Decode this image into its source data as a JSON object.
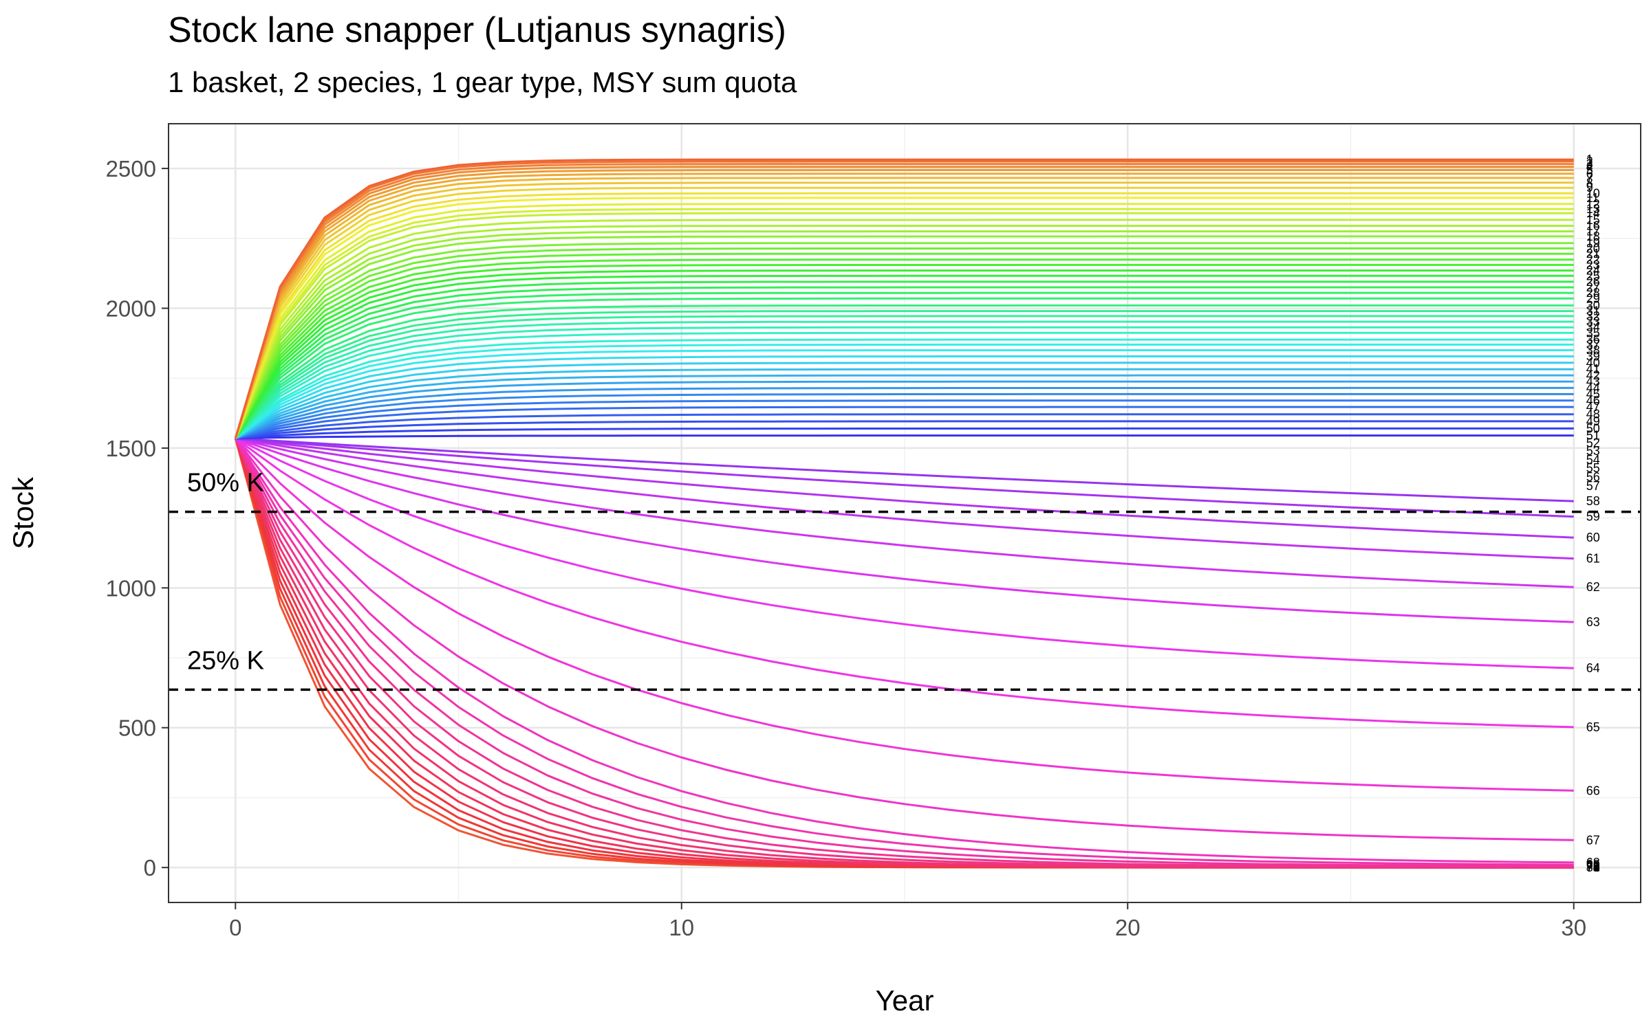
{
  "chart_data": {
    "type": "line",
    "title": "Stock lane snapper (Lutjanus synagris)",
    "subtitle": "1 basket, 2 species, 1 gear type, MSY sum quota",
    "xlabel": "Year",
    "ylabel": "Stock",
    "xlim": [
      -1.5,
      31.5
    ],
    "ylim": [
      -125,
      2660
    ],
    "x_ticks": [
      0,
      10,
      20,
      30
    ],
    "y_ticks": [
      0,
      500,
      1000,
      1500,
      2000,
      2500
    ],
    "grid": true,
    "legend": "none",
    "initial_stock": 1535,
    "carrying_capacity_K": 2545,
    "series_count": 80,
    "series_end_values": [
      2532,
      2525,
      2516,
      2506,
      2494,
      2481,
      2466,
      2449,
      2431,
      2411,
      2395,
      2373,
      2355,
      2340,
      2316,
      2295,
      2275,
      2257,
      2233,
      2214,
      2195,
      2174,
      2155,
      2135,
      2116,
      2095,
      2075,
      2055,
      2035,
      2010,
      1990,
      1972,
      1952,
      1932,
      1912,
      1888,
      1870,
      1850,
      1828,
      1805,
      1782,
      1760,
      1738,
      1715,
      1693,
      1670,
      1647,
      1621,
      1596,
      1570,
      1545,
      1518,
      1490,
      1458,
      1428,
      1397,
      1365,
      1310,
      1255,
      1180,
      1105,
      1003,
      878,
      713,
      502,
      275,
      98,
      18,
      10,
      5,
      2,
      1,
      0,
      0,
      0,
      0,
      0,
      0,
      0,
      0
    ],
    "series_labels": [
      "1",
      "2",
      "3",
      "4",
      "5",
      "6",
      "7",
      "8",
      "9",
      "10",
      "11",
      "12",
      "13",
      "14",
      "15",
      "16",
      "17",
      "18",
      "19",
      "20",
      "21",
      "22",
      "23",
      "24",
      "25",
      "26",
      "27",
      "28",
      "29",
      "30",
      "31",
      "32",
      "33",
      "34",
      "35",
      "36",
      "37",
      "38",
      "39",
      "40",
      "41",
      "42",
      "43",
      "44",
      "45",
      "46",
      "47",
      "48",
      "49",
      "50",
      "51",
      "52",
      "53",
      "54",
      "55",
      "56",
      "57",
      "58",
      "59",
      "60",
      "61",
      "62",
      "63",
      "64",
      "65",
      "66",
      "67",
      "68",
      "69",
      "70",
      "71",
      "72",
      "73",
      "74",
      "75",
      "76",
      "77",
      "78",
      "79",
      "80"
    ],
    "reference_lines": [
      {
        "y": 1272,
        "label": "50% K",
        "style": "dashed"
      },
      {
        "y": 636,
        "label": "25% K",
        "style": "dashed"
      }
    ]
  }
}
